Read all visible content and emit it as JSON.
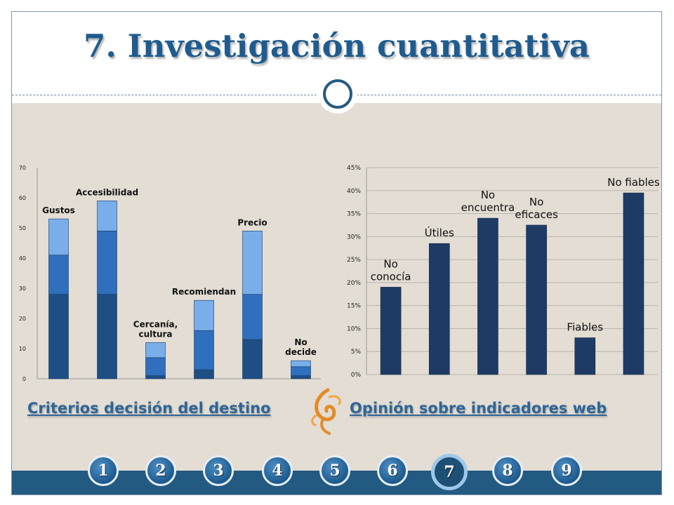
{
  "slide": {
    "title": "7. Investigación cuantitativa"
  },
  "captions": {
    "left": "Criterios decisión del destino",
    "right": "Opinión sobre indicadores web"
  },
  "nav": {
    "items": [
      "1",
      "2",
      "3",
      "4",
      "5",
      "6",
      "7",
      "8",
      "9"
    ],
    "active_index": 6
  },
  "colors": {
    "title": "#1f5b8e",
    "caption": "#2d6598",
    "bar_dark": "#1f4e84",
    "bar_mid": "#2f6fbd",
    "bar_light": "#7aaeea",
    "bar_single": "#1e3b66",
    "nav_bar": "#235a82"
  },
  "icons": [
    "fleur-icon"
  ],
  "chart_data": [
    {
      "type": "bar",
      "stacked": true,
      "categories": [
        "Gustos",
        "Accesibilidad",
        "Cercanía, cultura",
        "Recomiendan",
        "Precio",
        "No decide"
      ],
      "series": [
        {
          "values": [
            28,
            28,
            1,
            3,
            13,
            1
          ]
        },
        {
          "values": [
            13,
            21,
            6,
            13,
            15,
            3
          ]
        },
        {
          "values": [
            12,
            10,
            5,
            10,
            21,
            2
          ]
        }
      ],
      "ylim": [
        0,
        70
      ],
      "yticks": [
        "0",
        "10",
        "20",
        "30",
        "40",
        "50",
        "60",
        "70"
      ],
      "ytick_values": [
        0,
        10,
        20,
        30,
        40,
        50,
        60,
        70
      ],
      "grid": false
    },
    {
      "type": "bar",
      "categories": [
        "No conocía",
        "Útiles",
        "No encuentra",
        "No eficaces",
        "Fiables",
        "No fiables"
      ],
      "values": [
        0.19,
        0.285,
        0.34,
        0.325,
        0.08,
        0.395
      ],
      "ylim": [
        0,
        0.45
      ],
      "yticks": [
        "0%",
        "5%",
        "10%",
        "15%",
        "20%",
        "25%",
        "30%",
        "35%",
        "40%",
        "45%"
      ],
      "ytick_values": [
        0,
        0.05,
        0.1,
        0.15,
        0.2,
        0.25,
        0.3,
        0.35,
        0.4,
        0.45
      ],
      "grid": true
    }
  ]
}
